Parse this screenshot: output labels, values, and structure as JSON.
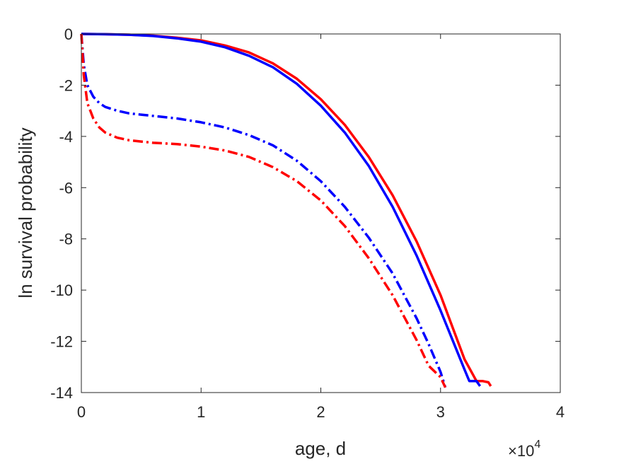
{
  "chart_data": {
    "type": "line",
    "xlabel": "age, d",
    "ylabel": "ln survival probability",
    "x_exponent_label": "×10⁴",
    "x_exponent": {
      "base": "10",
      "power": "4"
    },
    "xlim": [
      0,
      40000
    ],
    "ylim": [
      -14,
      0
    ],
    "xticks": [
      0,
      10000,
      20000,
      30000,
      40000
    ],
    "xtick_labels": [
      "0",
      "1",
      "2",
      "3",
      "4"
    ],
    "yticks": [
      0,
      -2,
      -4,
      -6,
      -8,
      -10,
      -12,
      -14
    ],
    "ytick_labels": [
      "0",
      "-2",
      "-4",
      "-6",
      "-8",
      "-10",
      "-12",
      "-14"
    ],
    "grid": false,
    "series": [
      {
        "color": "#ff0000",
        "dash": "solid",
        "x": [
          0,
          2000,
          4000,
          6000,
          8000,
          10000,
          12000,
          14000,
          16000,
          18000,
          20000,
          22000,
          24000,
          26000,
          28000,
          30000,
          32000,
          33000,
          33500,
          34000,
          34200
        ],
        "y": [
          0,
          -0.01,
          -0.03,
          -0.07,
          -0.15,
          -0.25,
          -0.45,
          -0.72,
          -1.15,
          -1.75,
          -2.55,
          -3.55,
          -4.8,
          -6.3,
          -8.1,
          -10.2,
          -12.7,
          -13.55,
          -13.55,
          -13.6,
          -13.75
        ]
      },
      {
        "color": "#0000ff",
        "dash": "solid",
        "x": [
          0,
          2000,
          4000,
          6000,
          8000,
          10000,
          12000,
          14000,
          16000,
          18000,
          20000,
          22000,
          24000,
          26000,
          28000,
          30000,
          32000,
          32400,
          32700,
          33000,
          33300
        ],
        "y": [
          0,
          -0.01,
          -0.03,
          -0.08,
          -0.17,
          -0.3,
          -0.52,
          -0.85,
          -1.3,
          -1.95,
          -2.8,
          -3.85,
          -5.15,
          -6.75,
          -8.65,
          -10.8,
          -13.1,
          -13.55,
          -13.55,
          -13.55,
          -13.75
        ]
      },
      {
        "color": "#0000ff",
        "dash": "dashdot",
        "x": [
          0,
          200,
          500,
          1000,
          1500,
          2000,
          3000,
          4000,
          5000,
          6000,
          8000,
          10000,
          12000,
          14000,
          16000,
          18000,
          20000,
          22000,
          24000,
          26000,
          28000,
          29000,
          30000,
          30400
        ],
        "y": [
          0,
          -1.2,
          -2.0,
          -2.45,
          -2.7,
          -2.85,
          -3.0,
          -3.1,
          -3.15,
          -3.2,
          -3.3,
          -3.45,
          -3.65,
          -3.95,
          -4.35,
          -4.95,
          -5.75,
          -6.75,
          -7.95,
          -9.35,
          -11.1,
          -12.1,
          -13.2,
          -13.8
        ]
      },
      {
        "color": "#ff0000",
        "dash": "dashdot",
        "x": [
          0,
          200,
          500,
          1000,
          1500,
          2000,
          3000,
          4000,
          5000,
          6000,
          8000,
          10000,
          12000,
          14000,
          16000,
          18000,
          20000,
          22000,
          24000,
          26000,
          28000,
          29000,
          30000,
          30400
        ],
        "y": [
          0,
          -1.6,
          -2.7,
          -3.3,
          -3.65,
          -3.85,
          -4.05,
          -4.15,
          -4.2,
          -4.25,
          -4.3,
          -4.4,
          -4.55,
          -4.8,
          -5.2,
          -5.75,
          -6.5,
          -7.5,
          -8.75,
          -10.2,
          -11.95,
          -12.95,
          -13.4,
          -13.8
        ]
      }
    ]
  }
}
